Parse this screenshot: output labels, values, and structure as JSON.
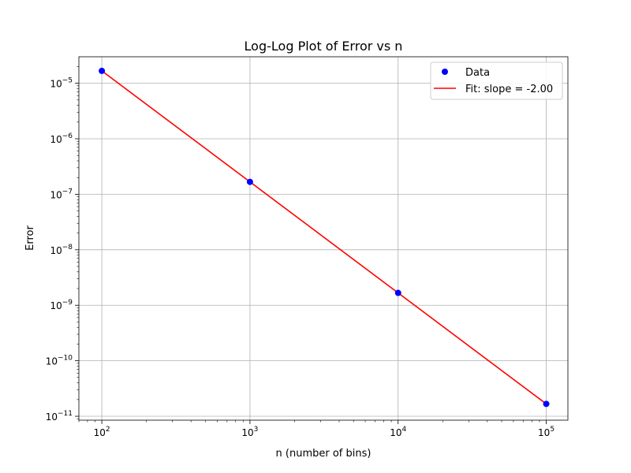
{
  "chart_data": {
    "type": "line",
    "title": "Log-Log Plot of Error vs n",
    "xlabel": "n (number of bins)",
    "ylabel": "Error",
    "xscale": "log",
    "yscale": "log",
    "xlim": [
      70,
      140000
    ],
    "ylim": [
      8.5e-12,
      3e-05
    ],
    "grid": true,
    "legend_position": "top-right",
    "x_ticks": [
      {
        "value": 100,
        "base": "10",
        "exp": "2"
      },
      {
        "value": 1000,
        "base": "10",
        "exp": "3"
      },
      {
        "value": 10000,
        "base": "10",
        "exp": "4"
      },
      {
        "value": 100000,
        "base": "10",
        "exp": "5"
      }
    ],
    "y_ticks": [
      {
        "value": 1e-11,
        "base": "10",
        "exp": "−11"
      },
      {
        "value": 1e-10,
        "base": "10",
        "exp": "−10"
      },
      {
        "value": 1e-09,
        "base": "10",
        "exp": "−9"
      },
      {
        "value": 1e-08,
        "base": "10",
        "exp": "−8"
      },
      {
        "value": 1e-07,
        "base": "10",
        "exp": "−7"
      },
      {
        "value": 1e-06,
        "base": "10",
        "exp": "−6"
      },
      {
        "value": 1e-05,
        "base": "10",
        "exp": "−5"
      }
    ],
    "series": [
      {
        "name": "Data",
        "kind": "scatter",
        "color": "#0000ff",
        "x": [
          100,
          1000,
          10000,
          100000
        ],
        "y": [
          1.67e-05,
          1.67e-07,
          1.67e-09,
          1.67e-11
        ]
      },
      {
        "name": "Fit: slope = -2.00",
        "kind": "line",
        "color": "#ff0000",
        "x": [
          100,
          100000
        ],
        "y": [
          1.67e-05,
          1.67e-11
        ]
      }
    ]
  }
}
